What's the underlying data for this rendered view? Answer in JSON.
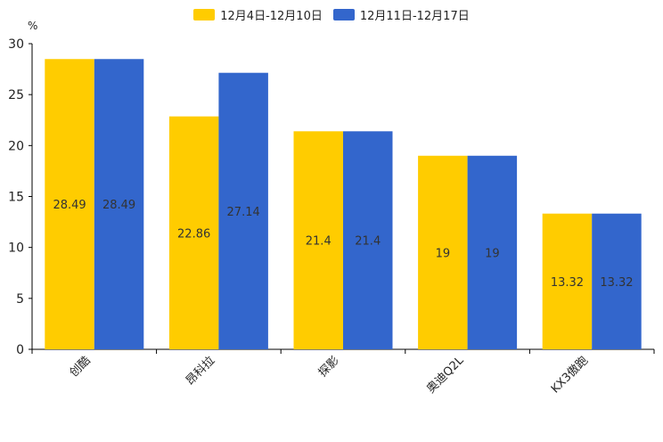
{
  "chart_data": {
    "type": "bar",
    "title": "",
    "unit_label": "%",
    "xlabel": "",
    "ylabel": "%",
    "ylim": [
      0,
      30
    ],
    "yticks": [
      0,
      5,
      10,
      15,
      20,
      25,
      30
    ],
    "categories": [
      "创酷",
      "昂科拉",
      "探影",
      "奥迪Q2L",
      "KX3傲跑"
    ],
    "series": [
      {
        "name": "12月4日-12月10日",
        "color": "#FFCC00",
        "values": [
          28.49,
          22.86,
          21.4,
          19,
          13.32
        ]
      },
      {
        "name": "12月11日-12月17日",
        "color": "#3366CC",
        "values": [
          28.49,
          27.14,
          21.4,
          19,
          13.32
        ]
      }
    ],
    "legend_position": "top-center",
    "grid": false
  }
}
